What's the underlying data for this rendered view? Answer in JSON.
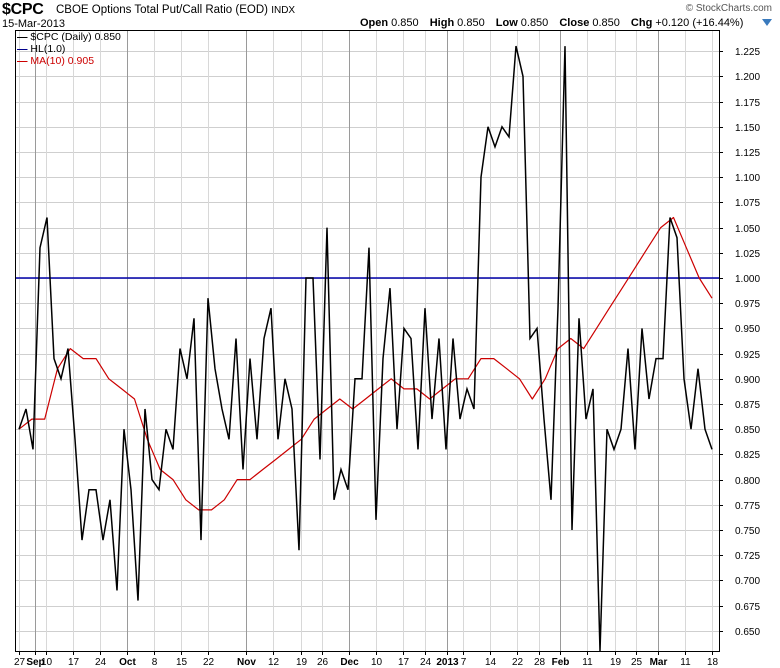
{
  "header": {
    "symbol": "$CPC",
    "title": "CBOE Options Total Put/Call Ratio (EOD)",
    "exchange": "INDX",
    "date": "15-Mar-2013",
    "open_label": "Open",
    "open": "0.850",
    "high_label": "High",
    "high": "0.850",
    "low_label": "Low",
    "low": "0.850",
    "close_label": "Close",
    "close": "0.850",
    "chg_label": "Chg",
    "chg": "+0.120 (+16.44%)",
    "brand": "© StockCharts.com"
  },
  "legend": [
    {
      "text": "$CPC (Daily) 0.850",
      "color": "#000000"
    },
    {
      "text": "HL(1.0)",
      "color": "#00008b"
    },
    {
      "text": "MA(10) 0.905",
      "color": "#cc0000"
    }
  ],
  "chart_data": {
    "type": "line",
    "ylim": [
      0.63,
      1.245
    ],
    "y_ticks": [
      "0.650",
      "0.675",
      "0.700",
      "0.725",
      "0.750",
      "0.775",
      "0.800",
      "0.825",
      "0.850",
      "0.875",
      "0.900",
      "0.925",
      "0.950",
      "0.975",
      "1.000",
      "1.025",
      "1.050",
      "1.075",
      "1.100",
      "1.125",
      "1.150",
      "1.175",
      "1.200",
      "1.225"
    ],
    "x_labels": [
      {
        "i": 0,
        "label": "27",
        "major": false
      },
      {
        "i": 3,
        "label": "Sep",
        "major": true
      },
      {
        "i": 5,
        "label": "10",
        "major": false
      },
      {
        "i": 10,
        "label": "17",
        "major": false
      },
      {
        "i": 15,
        "label": "24",
        "major": false
      },
      {
        "i": 20,
        "label": "Oct",
        "major": true
      },
      {
        "i": 25,
        "label": "8",
        "major": false
      },
      {
        "i": 30,
        "label": "15",
        "major": false
      },
      {
        "i": 35,
        "label": "22",
        "major": false
      },
      {
        "i": 42,
        "label": "Nov",
        "major": true
      },
      {
        "i": 47,
        "label": "12",
        "major": false
      },
      {
        "i": 52,
        "label": "19",
        "major": false
      },
      {
        "i": 56,
        "label": "26",
        "major": false
      },
      {
        "i": 61,
        "label": "Dec",
        "major": true
      },
      {
        "i": 66,
        "label": "10",
        "major": false
      },
      {
        "i": 71,
        "label": "17",
        "major": false
      },
      {
        "i": 75,
        "label": "24",
        "major": false
      },
      {
        "i": 79,
        "label": "2013",
        "major": true
      },
      {
        "i": 82,
        "label": "7",
        "major": false
      },
      {
        "i": 87,
        "label": "14",
        "major": false
      },
      {
        "i": 92,
        "label": "22",
        "major": false
      },
      {
        "i": 96,
        "label": "28",
        "major": false
      },
      {
        "i": 100,
        "label": "Feb",
        "major": true
      },
      {
        "i": 105,
        "label": "11",
        "major": false
      },
      {
        "i": 110,
        "label": "19",
        "major": false
      },
      {
        "i": 114,
        "label": "25",
        "major": false
      },
      {
        "i": 118,
        "label": "Mar",
        "major": true
      },
      {
        "i": 123,
        "label": "11",
        "major": false
      },
      {
        "i": 128,
        "label": "18",
        "major": false
      }
    ],
    "n_slots": 129,
    "series": [
      {
        "name": "$CPC (Daily) 0.850",
        "color": "#000000",
        "values": [
          0.85,
          0.87,
          0.83,
          1.03,
          1.06,
          0.92,
          0.9,
          0.93,
          0.84,
          0.74,
          0.79,
          0.79,
          0.74,
          0.78,
          0.69,
          0.85,
          0.79,
          0.68,
          0.87,
          0.8,
          0.79,
          0.85,
          0.83,
          0.93,
          0.9,
          0.96,
          0.74,
          0.98,
          0.91,
          0.87,
          0.84,
          0.94,
          0.81,
          0.92,
          0.84,
          0.94,
          0.97,
          0.84,
          0.9,
          0.87,
          0.73,
          1.0,
          1.0,
          0.82,
          1.05,
          0.78,
          0.81,
          0.79,
          0.9,
          0.9,
          1.03,
          0.76,
          0.92,
          0.99,
          0.85,
          0.95,
          0.94,
          0.83,
          0.97,
          0.86,
          0.94,
          0.83,
          0.94,
          0.86,
          0.89,
          0.87,
          1.1,
          1.15,
          1.13,
          1.15,
          1.14,
          1.23,
          1.2,
          0.94,
          0.95,
          0.86,
          0.78,
          0.97,
          1.23,
          0.75,
          0.96,
          0.86,
          0.89,
          0.63,
          0.85,
          0.83,
          0.85,
          0.93,
          0.83,
          0.95,
          0.88,
          0.92,
          0.92,
          1.06,
          1.04,
          0.9,
          0.85,
          0.91,
          0.85,
          0.83
        ],
        "x_start": 0
      },
      {
        "name": "MA(10) 0.905",
        "color": "#cc0000",
        "values": [
          0.85,
          0.86,
          0.86,
          0.91,
          0.93,
          0.92,
          0.92,
          0.9,
          0.89,
          0.88,
          0.84,
          0.81,
          0.8,
          0.78,
          0.77,
          0.77,
          0.78,
          0.8,
          0.8,
          0.81,
          0.82,
          0.83,
          0.84,
          0.86,
          0.87,
          0.88,
          0.87,
          0.88,
          0.89,
          0.9,
          0.89,
          0.89,
          0.88,
          0.89,
          0.9,
          0.9,
          0.92,
          0.92,
          0.91,
          0.9,
          0.88,
          0.9,
          0.93,
          0.94,
          0.93,
          0.95,
          0.97,
          0.99,
          1.01,
          1.03,
          1.05,
          1.06,
          1.03,
          1.0,
          0.98
        ],
        "x_start": 0
      }
    ],
    "hline": {
      "name": "HL(1.0)",
      "value": 1.0,
      "color": "#0000aa"
    }
  }
}
